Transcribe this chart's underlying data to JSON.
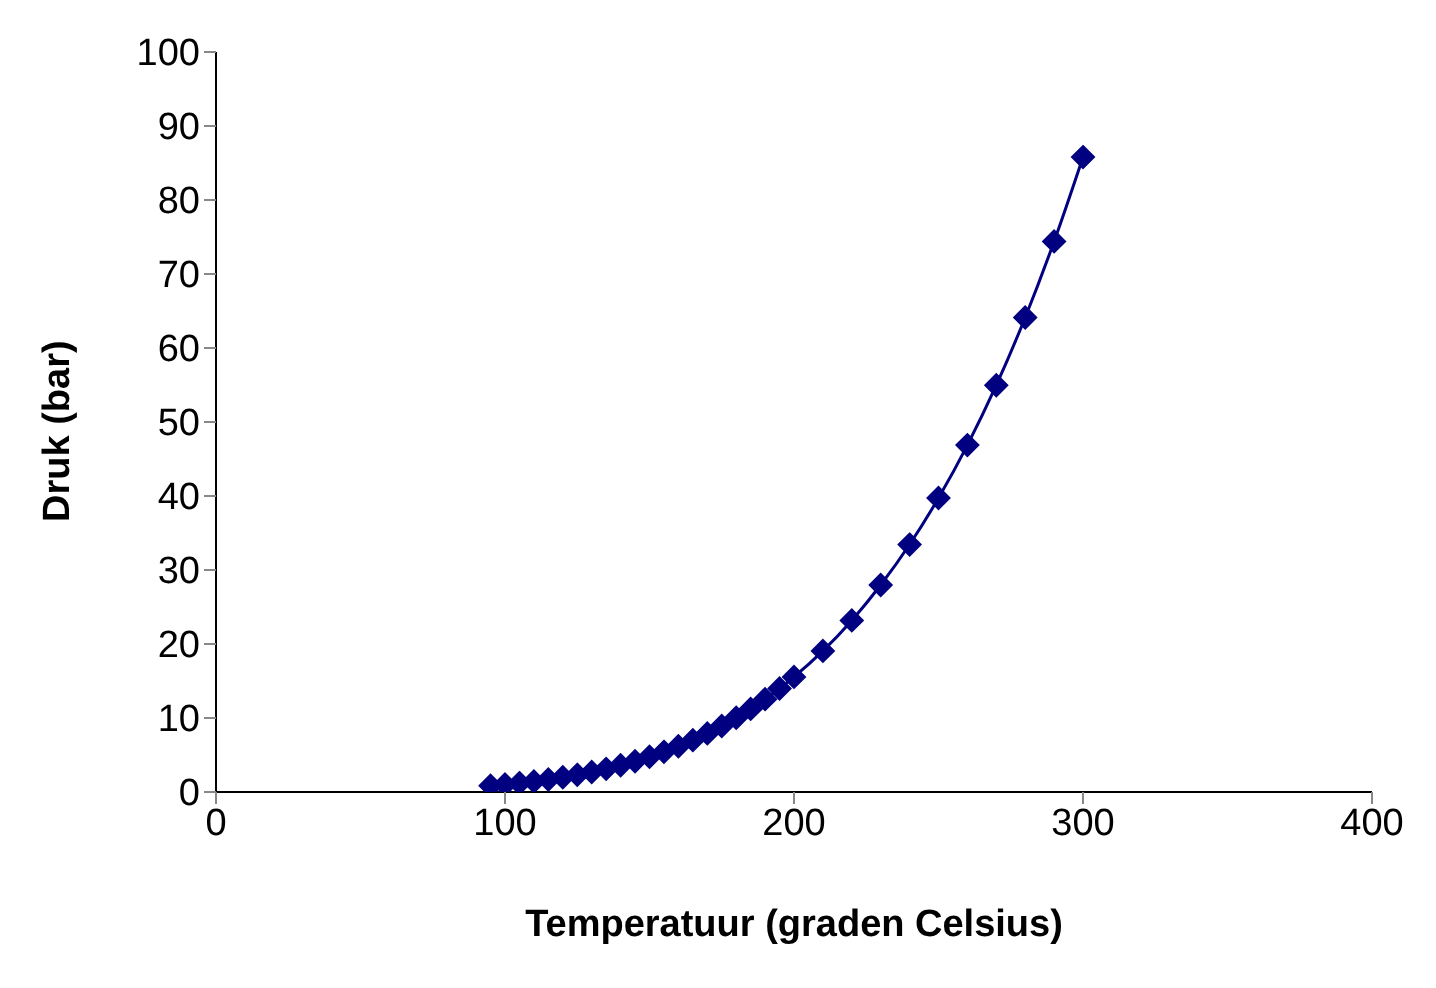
{
  "chart_data": {
    "type": "line",
    "xlabel": "Temperatuur (graden Celsius)",
    "ylabel": "Druk (bar)",
    "x": [
      95,
      100,
      105,
      110,
      115,
      120,
      125,
      130,
      135,
      140,
      145,
      150,
      155,
      160,
      165,
      170,
      175,
      180,
      185,
      190,
      195,
      200,
      210,
      220,
      230,
      240,
      250,
      260,
      270,
      280,
      290,
      300
    ],
    "series": [
      {
        "color": "#000080",
        "values": [
          0.85,
          1.01,
          1.21,
          1.43,
          1.69,
          1.99,
          2.32,
          2.7,
          3.13,
          3.61,
          4.16,
          4.76,
          5.43,
          6.18,
          7.01,
          7.92,
          8.92,
          10.03,
          11.23,
          12.55,
          13.99,
          15.55,
          19.07,
          23.19,
          27.97,
          33.44,
          39.73,
          46.88,
          54.97,
          64.12,
          74.4,
          85.8
        ]
      }
    ],
    "xlim": [
      0,
      400
    ],
    "xticks": [
      0,
      100,
      200,
      300,
      400
    ],
    "ylim": [
      0,
      100
    ],
    "yticks": [
      0,
      10,
      20,
      30,
      40,
      50,
      60,
      70,
      80,
      90,
      100
    ],
    "grid": false,
    "legend": false,
    "marker": "diamond",
    "line_style": "solid"
  }
}
